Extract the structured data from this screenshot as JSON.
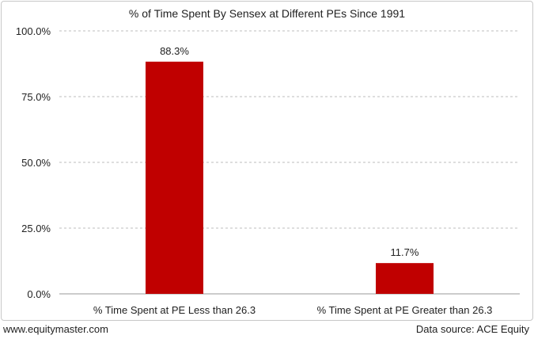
{
  "chart_data": {
    "type": "bar",
    "title": "% of Time Spent By Sensex at Different PEs Since 1991",
    "categories": [
      "% Time Spent at PE Less than 26.3",
      "% Time Spent at PE Greater than 26.3"
    ],
    "values": [
      88.3,
      11.7
    ],
    "data_labels": [
      "88.3%",
      "11.7%"
    ],
    "xlabel": "",
    "ylabel": "",
    "ylim": [
      0,
      100
    ],
    "yticks": [
      0,
      25,
      50,
      75,
      100
    ],
    "ytick_labels": [
      "0.0%",
      "25.0%",
      "50.0%",
      "75.0%",
      "100.0%"
    ],
    "grid": "horizontal dashed",
    "bar_color": "#c00000"
  },
  "footer": {
    "website": "www.equitymaster.com",
    "source": "Data source: ACE Equity"
  }
}
